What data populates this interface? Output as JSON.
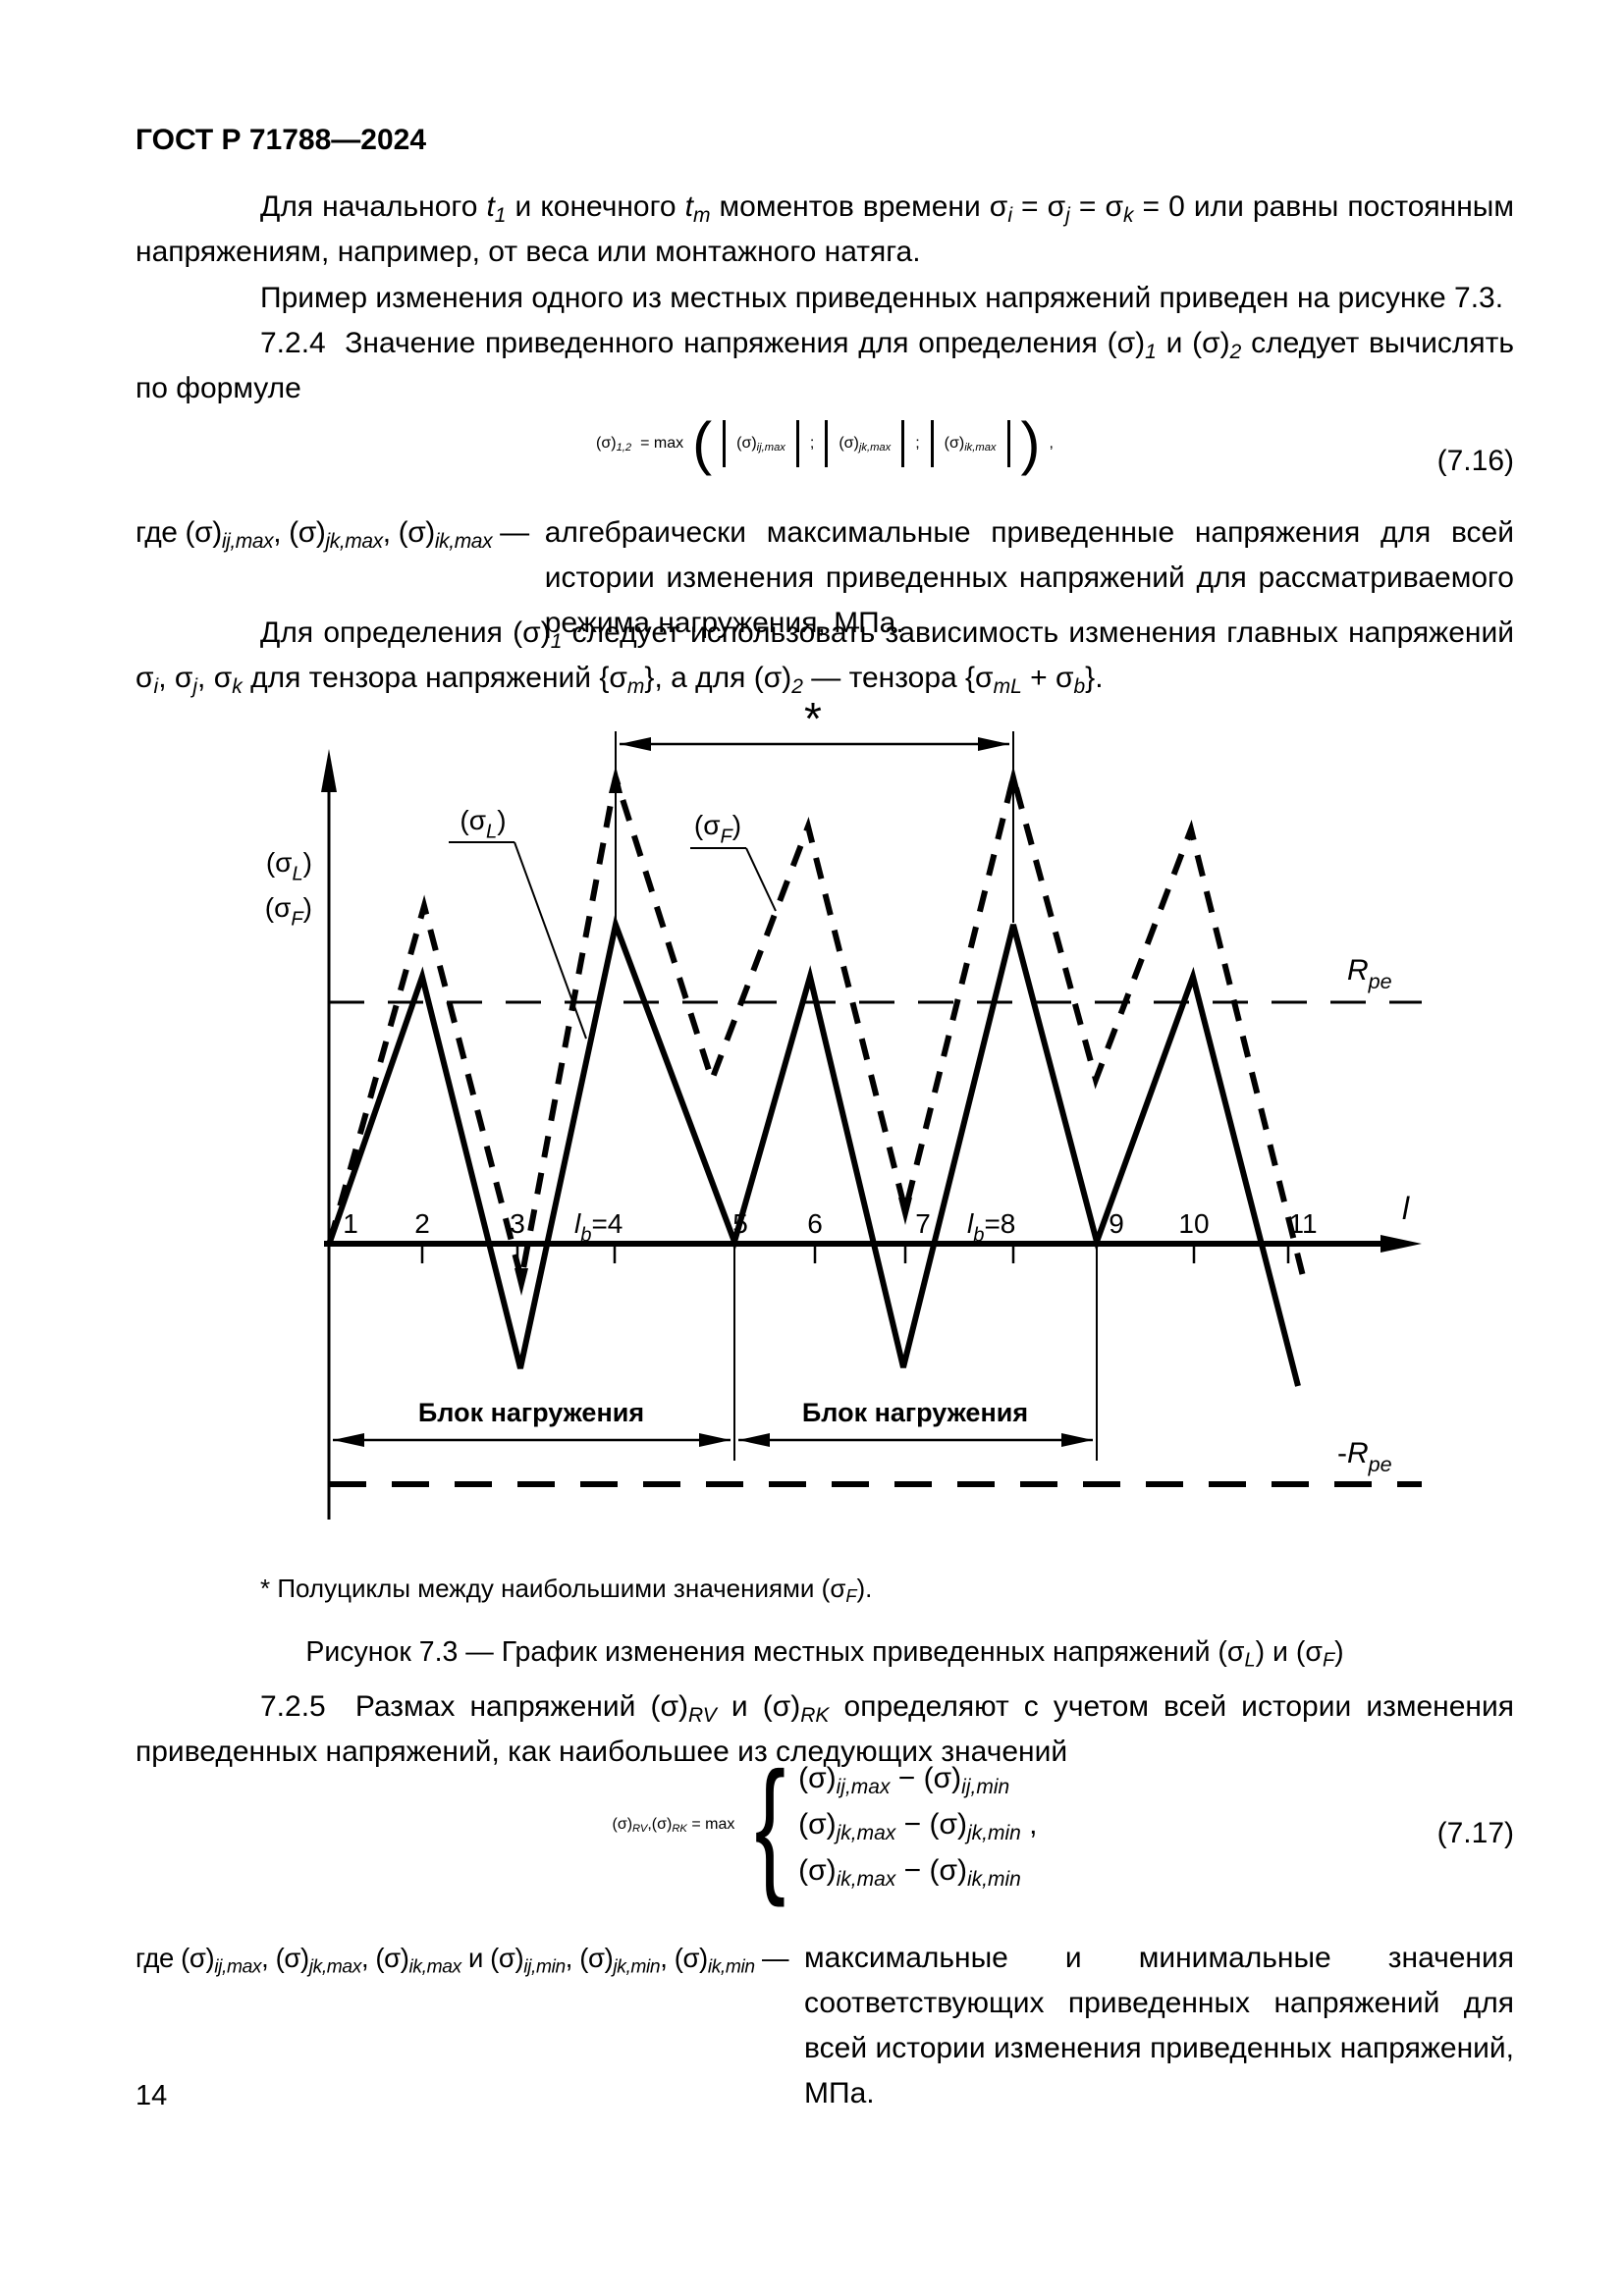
{
  "header": {
    "title": "ГОСТ Р 71788—2024"
  },
  "page": {
    "number": "14"
  },
  "paragraphs": {
    "p1": "Для начального *t*_{1} и конечного *t*_{m} моментов времени σ_{i} = σ_{j} = σ_{k} = 0 или равны постоянным напряжениям, например, от веса или монтажного натяга.",
    "p2": "Пример изменения одного из местных приведенных напряжений приведен на рисунке 7.3.",
    "p3": "7.2.4  Значение приведенного напряжения для определения (σ)_{1} и (σ)_{2} следует вычислять по формуле",
    "gde1_head": "где (σ)_{ij,max}, (σ)_{jk,max}, (σ)_{ik,max} —",
    "gde1_body": "алгебраически максимальные приведенные напряжения для всей истории изменения приведенных напряжений для рассматриваемого режима нагружения, МПа.",
    "p4": "Для определения (σ)_{1} следует использовать зависимость изменения главных напряжений σ_{i}, σ_{j}, σ_{k} для тензора напряжений {σ_{m}}, а для (σ)_{2} — тензора {σ_{mL} + σ_{b}}.",
    "p5": "7.2.5  Размах напряжений (σ)_{RV} и (σ)_{RK} определяют с учетом всей истории изменения приведенных напряжений, как наибольшее из следующих значений",
    "gde2_head": "где (σ)_{ij,max}, (σ)_{jk,max}, (σ)_{ik,max} и (σ)_{ij,min}, (σ)_{jk,min}, (σ)_{ik,min} —",
    "gde2_body": "максимальные и минимальные значения соответствующих приведенных напряжений для всей истории изменения приведенных напряжений, МПа."
  },
  "formulas": {
    "f716": {
      "lhs": "(σ)_{1,2}",
      "eq": "= max",
      "open": "(",
      "terms": [
        "(σ)_{ij,max}",
        "(σ)_{jk,max}",
        "(σ)_{ik,max}"
      ],
      "sep": ";",
      "close": ")",
      "tail": ",",
      "number": "(7.16)"
    },
    "f717": {
      "lhs": "(σ)_{RV},(σ)_{RK} = max",
      "brace": "{",
      "rows": [
        "(σ)_{ij,max} − (σ)_{ij,min}",
        "(σ)_{jk,max} − (σ)_{jk,min} ,",
        "(σ)_{ik,max} − (σ)_{ik,min}"
      ],
      "number": "(7.17)"
    }
  },
  "footnote": "* Полуциклы между наибольшими значениями (σ_{F}).",
  "caption": "Рисунок 7.3 — График изменения местных приведенных напряжений (σ_{L}) и (σ_{F})",
  "chart_data": {
    "type": "line",
    "title": "График изменения местных приведенных напряжений (σ_L) и (σ_F)",
    "x_axis_label": "*l*",
    "y_axis_labels": [
      "(σ_{L})",
      "(σ_{F})"
    ],
    "legend": [
      {
        "name": "(σ_{L})",
        "style": "solid"
      },
      {
        "name": "(σ_{F})",
        "style": "dashed"
      }
    ],
    "x_ticks": [
      "1",
      "2",
      "3",
      "*l*_{b}=4",
      "5",
      "6",
      "7",
      "*l*_{b}=8",
      "9",
      "10",
      "11"
    ],
    "upper_level_label": "*R*_{pe}",
    "lower_level_label": "-*R*_{pe}",
    "star_note": "*",
    "block_labels": [
      "Блок нагружения",
      "Блок нагружения"
    ],
    "px": {
      "y_axis": {
        "x": 335,
        "y1": 763,
        "y2": 1548
      },
      "x_axis": {
        "y": 1267,
        "x1": 330,
        "x2": 1448
      },
      "rpe": {
        "y": 1021,
        "x1": 335,
        "x2": 1448,
        "label_x": 1372,
        "label_y": 998
      },
      "neg_rpe": {
        "y": 1512,
        "x1": 335,
        "x2": 1448,
        "label_x": 1362,
        "label_y": 1490
      },
      "x_label": {
        "x": 1428,
        "y": 1242
      },
      "y_labels": [
        {
          "x": 318,
          "y": 888
        },
        {
          "x": 318,
          "y": 934
        }
      ],
      "tick_labels": [
        {
          "x": 357,
          "y": 1256
        },
        {
          "x": 430,
          "y": 1256
        },
        {
          "x": 527,
          "y": 1256
        },
        {
          "x": 585,
          "y": 1256,
          "anchor": "start"
        },
        {
          "x": 754,
          "y": 1256
        },
        {
          "x": 830,
          "y": 1256
        },
        {
          "x": 940,
          "y": 1256
        },
        {
          "x": 985,
          "y": 1256,
          "anchor": "start"
        },
        {
          "x": 1137,
          "y": 1256
        },
        {
          "x": 1216,
          "y": 1256
        },
        {
          "x": 1327,
          "y": 1256
        }
      ],
      "tick_marks": [
        430,
        527,
        626,
        830,
        922,
        1032,
        1216,
        1312
      ],
      "verticals": [
        {
          "x": 627,
          "y1": 745,
          "y2": 940
        },
        {
          "x": 1032,
          "y1": 745,
          "y2": 940
        },
        {
          "x": 748,
          "y1": 1267,
          "y2": 1488
        },
        {
          "x": 1117,
          "y1": 1267,
          "y2": 1488
        }
      ],
      "star_dim": {
        "y": 758,
        "x1": 631,
        "x2": 1028,
        "label_x": 828,
        "label_y": 748
      },
      "blocks": [
        {
          "x1": 339,
          "x2": 744,
          "y": 1467,
          "label_x": 541,
          "label_y": 1448
        },
        {
          "x1": 752,
          "x2": 1113,
          "y": 1467,
          "label_x": 932,
          "label_y": 1448
        }
      ],
      "solid_points": [
        [
          336,
          1265
        ],
        [
          430,
          995
        ],
        [
          530,
          1394
        ],
        [
          627,
          942
        ],
        [
          748,
          1265
        ],
        [
          825,
          995
        ],
        [
          920,
          1393
        ],
        [
          1032,
          942
        ],
        [
          1117,
          1265
        ],
        [
          1215,
          995
        ],
        [
          1322,
          1412
        ]
      ],
      "dashed_points": [
        [
          336,
          1265
        ],
        [
          432,
          923
        ],
        [
          531,
          1303
        ],
        [
          627,
          792
        ],
        [
          725,
          1100
        ],
        [
          823,
          842
        ],
        [
          922,
          1233
        ],
        [
          1032,
          792
        ],
        [
          1116,
          1100
        ],
        [
          1213,
          845
        ],
        [
          1330,
          1312
        ]
      ],
      "dashed_tip_arrows": [
        {
          "x": 531,
          "y": 1320,
          "dir": "down"
        },
        {
          "x": 922,
          "y": 1248,
          "dir": "down"
        },
        {
          "x": 627,
          "y": 780,
          "dir": "up"
        },
        {
          "x": 1032,
          "y": 780,
          "dir": "up"
        }
      ],
      "callouts": [
        {
          "label_x": 492,
          "label_y": 845,
          "lines": [
            [
              457,
              858,
              524,
              858
            ],
            [
              524,
              858,
              597,
              1058
            ]
          ]
        },
        {
          "label_x": 731,
          "label_y": 850,
          "lines": [
            [
              703,
              864,
              760,
              864
            ],
            [
              760,
              864,
              790,
              928
            ]
          ]
        }
      ]
    }
  }
}
